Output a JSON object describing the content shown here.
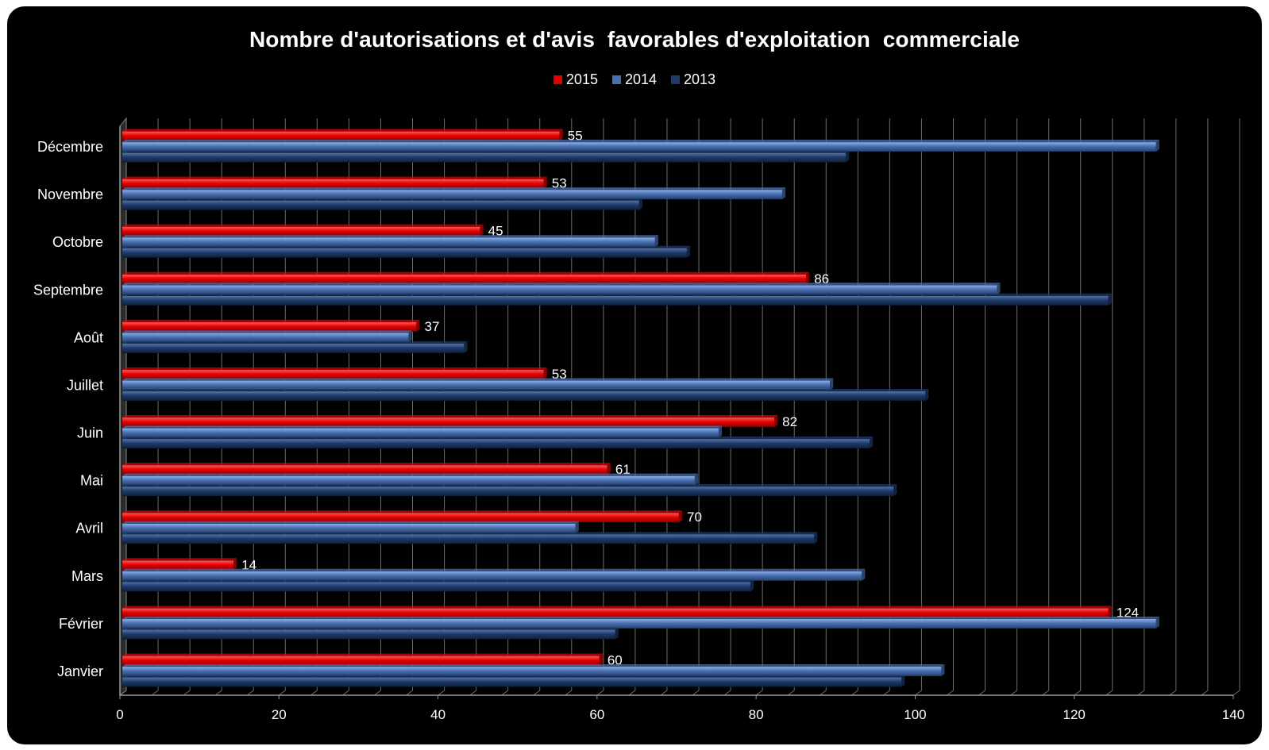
{
  "chart_data": {
    "type": "bar",
    "orientation": "horizontal",
    "title": "Nombre d'autorisations et d'avis  favorables d'exploitation  commerciale",
    "categories": [
      "Janvier",
      "Février",
      "Mars",
      "Avril",
      "Mai",
      "Juin",
      "Juillet",
      "Août",
      "Septembre",
      "Octobre",
      "Novembre",
      "Décembre"
    ],
    "series": [
      {
        "name": "2015",
        "color": "#e00000",
        "values": [
          60,
          124,
          14,
          70,
          61,
          82,
          53,
          37,
          86,
          45,
          53,
          55
        ],
        "data_labels": [
          "60",
          "124",
          "14",
          "70",
          "61",
          "82",
          "53",
          "37",
          "86",
          "45",
          "53",
          "55"
        ]
      },
      {
        "name": "2014",
        "color": "#4a70b0",
        "values": [
          103,
          130,
          93,
          57,
          72,
          75,
          89,
          36,
          110,
          67,
          83,
          130
        ]
      },
      {
        "name": "2013",
        "color": "#1f3b6a",
        "values": [
          98,
          62,
          79,
          87,
          97,
          94,
          101,
          43,
          124,
          71,
          65,
          91
        ]
      }
    ],
    "xlim": [
      0,
      140
    ],
    "x_ticks": [
      "0",
      "20",
      "40",
      "60",
      "80",
      "100",
      "120",
      "140"
    ],
    "xlabel": "",
    "ylabel": "",
    "grid": true,
    "legend_position": "top-center",
    "background": "#000000",
    "text_color": "#ffffff"
  }
}
